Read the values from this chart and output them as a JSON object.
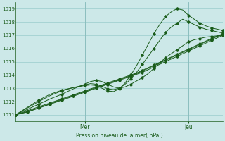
{
  "background_color": "#cce8e8",
  "grid_color": "#99cccc",
  "line_color": "#1a5c1a",
  "title": "Pression niveau de la mer( hPa )",
  "x_ticks_labels": [
    "Mer",
    "Jeu"
  ],
  "x_ticks_pos": [
    12,
    30
  ],
  "xlim": [
    0,
    36
  ],
  "ylim": [
    1010.5,
    1019.5
  ],
  "yticks": [
    1011,
    1012,
    1013,
    1014,
    1015,
    1016,
    1017,
    1018,
    1019
  ],
  "series": [
    {
      "x": [
        0,
        1,
        2,
        3,
        4,
        5,
        6,
        7,
        8,
        9,
        10,
        11,
        12,
        13,
        14,
        15,
        16,
        17,
        18,
        19,
        20,
        21,
        22,
        23,
        24,
        25,
        26,
        27,
        28,
        29,
        30,
        31,
        32,
        33,
        34,
        35,
        36
      ],
      "y": [
        1011,
        1011.1,
        1011.2,
        1011.35,
        1011.5,
        1011.65,
        1011.8,
        1011.95,
        1012.1,
        1012.25,
        1012.4,
        1012.55,
        1012.7,
        1012.85,
        1013.0,
        1013.15,
        1013.3,
        1013.45,
        1013.6,
        1013.75,
        1013.9,
        1014.05,
        1014.2,
        1014.4,
        1014.6,
        1014.8,
        1015.0,
        1015.2,
        1015.4,
        1015.6,
        1015.8,
        1016.0,
        1016.2,
        1016.4,
        1016.6,
        1016.8,
        1017.0
      ]
    },
    {
      "x": [
        0,
        1,
        2,
        3,
        4,
        5,
        6,
        7,
        8,
        9,
        10,
        11,
        12,
        13,
        14,
        15,
        16,
        17,
        18,
        19,
        20,
        21,
        22,
        23,
        24,
        25,
        26,
        27,
        28,
        29,
        30,
        31,
        32,
        33,
        34,
        35,
        36
      ],
      "y": [
        1011,
        1011.12,
        1011.24,
        1011.38,
        1011.52,
        1011.68,
        1011.84,
        1012.0,
        1012.15,
        1012.3,
        1012.45,
        1012.6,
        1012.75,
        1012.9,
        1013.05,
        1013.2,
        1013.35,
        1013.5,
        1013.65,
        1013.8,
        1013.95,
        1014.1,
        1014.3,
        1014.5,
        1014.7,
        1014.9,
        1015.1,
        1015.3,
        1015.5,
        1015.7,
        1015.9,
        1016.1,
        1016.3,
        1016.5,
        1016.7,
        1016.9,
        1017.05
      ]
    },
    {
      "x": [
        0,
        1,
        2,
        3,
        4,
        5,
        6,
        7,
        8,
        9,
        10,
        11,
        12,
        13,
        14,
        15,
        16,
        17,
        18,
        19,
        20,
        21,
        22,
        23,
        24,
        25,
        26,
        27,
        28,
        29,
        30,
        31,
        32,
        33,
        34,
        35,
        36
      ],
      "y": [
        1011,
        1011.15,
        1011.3,
        1011.45,
        1011.6,
        1011.75,
        1011.9,
        1012.05,
        1012.2,
        1012.35,
        1012.5,
        1012.65,
        1012.8,
        1012.95,
        1013.1,
        1013.25,
        1013.4,
        1013.55,
        1013.7,
        1013.85,
        1014.0,
        1014.15,
        1014.35,
        1014.55,
        1014.75,
        1014.95,
        1015.15,
        1015.35,
        1015.55,
        1015.75,
        1015.95,
        1016.15,
        1016.35,
        1016.55,
        1016.75,
        1016.95,
        1017.1
      ]
    },
    {
      "x": [
        0,
        2,
        4,
        6,
        8,
        10,
        12,
        13,
        14,
        15,
        16,
        17,
        18,
        19,
        20,
        21,
        22,
        23,
        24,
        25,
        26,
        27,
        28,
        29,
        30,
        31,
        32,
        33,
        34,
        35,
        36
      ],
      "y": [
        1011,
        1011.4,
        1011.8,
        1012.2,
        1012.55,
        1012.95,
        1013.3,
        1013.5,
        1013.6,
        1013.5,
        1013.3,
        1013.1,
        1013.0,
        1013.1,
        1013.3,
        1013.55,
        1013.8,
        1014.1,
        1014.5,
        1014.9,
        1015.3,
        1015.6,
        1015.9,
        1016.2,
        1016.5,
        1016.65,
        1016.75,
        1016.85,
        1016.9,
        1016.95,
        1017.0
      ]
    },
    {
      "x": [
        0,
        2,
        4,
        6,
        8,
        10,
        12,
        13,
        14,
        15,
        16,
        17,
        18,
        19,
        20,
        21,
        22,
        23,
        24,
        25,
        26,
        27,
        28,
        29,
        30,
        31,
        32,
        33,
        34,
        35,
        36
      ],
      "y": [
        1011,
        1011.5,
        1012.0,
        1012.45,
        1012.8,
        1013.05,
        1013.25,
        1013.35,
        1013.3,
        1013.15,
        1012.95,
        1012.9,
        1013.0,
        1013.3,
        1013.7,
        1014.2,
        1014.8,
        1015.4,
        1016.0,
        1016.6,
        1017.2,
        1017.6,
        1017.9,
        1018.2,
        1018.0,
        1017.8,
        1017.6,
        1017.45,
        1017.35,
        1017.25,
        1017.15
      ]
    },
    {
      "x": [
        0,
        2,
        4,
        6,
        8,
        10,
        12,
        13,
        14,
        15,
        16,
        17,
        18,
        19,
        20,
        21,
        22,
        23,
        24,
        25,
        26,
        27,
        28,
        29,
        30,
        31,
        32,
        33,
        34,
        35,
        36
      ],
      "y": [
        1011,
        1011.55,
        1012.1,
        1012.55,
        1012.85,
        1013.05,
        1013.2,
        1013.25,
        1013.2,
        1013.0,
        1012.8,
        1012.75,
        1012.95,
        1013.4,
        1014.0,
        1014.7,
        1015.5,
        1016.3,
        1017.1,
        1017.8,
        1018.4,
        1018.75,
        1019.0,
        1018.9,
        1018.5,
        1018.2,
        1017.9,
        1017.7,
        1017.55,
        1017.45,
        1017.35
      ]
    }
  ]
}
